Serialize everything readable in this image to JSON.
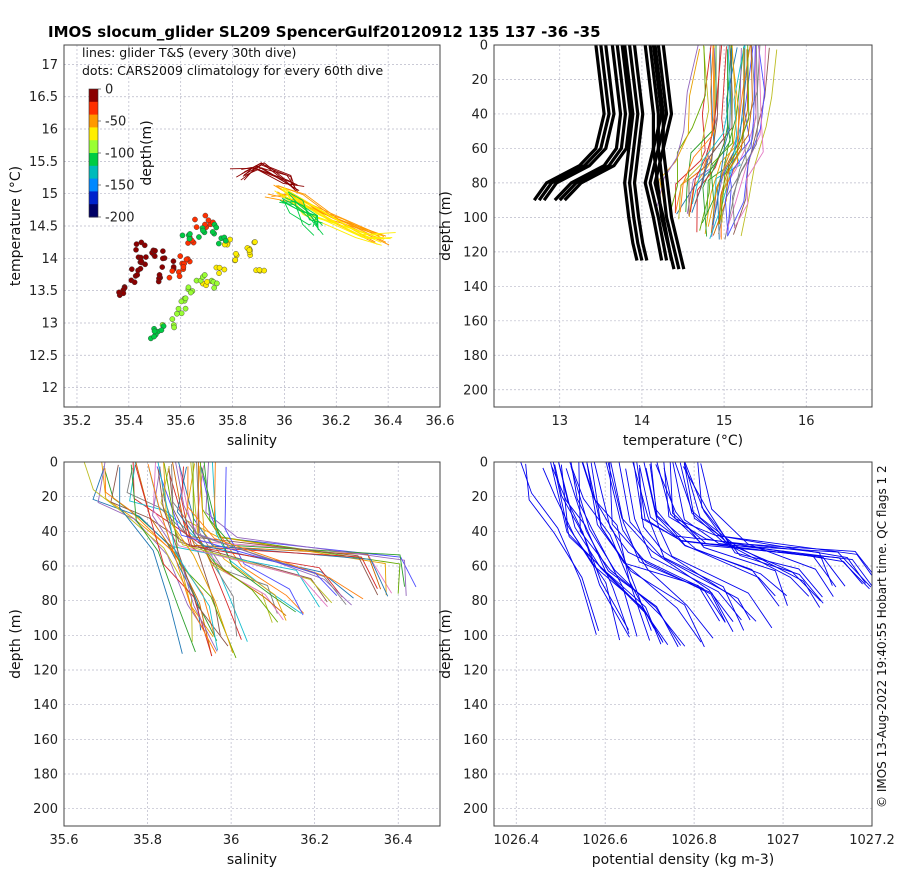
{
  "title": "IMOS slocum_glider SL209 SpencerGulf20120912 135  137  -36  -35",
  "credit": "© IMOS 13-Aug-2022 19:40:55 Hobart time. QC flags 1  2",
  "annotations": {
    "line1": "lines: glider T&S (every 30th dive)",
    "line2": "dots: CARS2009 climatology for every 60th dive"
  },
  "colorbar": {
    "label": "depth(m)",
    "ticks": [
      "0",
      "-50",
      "-100",
      "-150",
      "-200"
    ],
    "values": [
      0,
      -50,
      -100,
      -150,
      -200
    ],
    "colors": [
      "#8b0000",
      "#ff3000",
      "#ff9900",
      "#ffee00",
      "#99ff33",
      "#00cc44",
      "#00bbbb",
      "#0088ff",
      "#0022cc",
      "#000066"
    ]
  },
  "colors": {
    "glider_line": "#000000",
    "density_line": "#0000ee",
    "dot_edge": "#333333"
  },
  "chart_data": [
    {
      "type": "scatter",
      "panel": "ts",
      "xlabel": "salinity",
      "ylabel": "temperature (°C)",
      "xlim": [
        35.15,
        36.6
      ],
      "ylim": [
        11.7,
        17.3
      ],
      "xticks": [
        35.2,
        35.4,
        35.6,
        35.8,
        36,
        36.2,
        36.4,
        36.6
      ],
      "xtick_labels": [
        "35.2",
        "35.4",
        "35.6",
        "35.8",
        "36",
        "36.2",
        "36.4",
        "36.6"
      ],
      "yticks": [
        12,
        12.5,
        13,
        13.5,
        14,
        14.5,
        15,
        15.5,
        16,
        16.5,
        17
      ],
      "ytick_labels": [
        "12",
        "12.5",
        "13",
        "13.5",
        "14",
        "14.5",
        "15",
        "15.5",
        "16",
        "16.5",
        "17"
      ],
      "dot_clusters": [
        {
          "depth": 0,
          "points": [
            [
              35.4,
              13.6
            ],
            [
              35.42,
              13.8
            ],
            [
              35.44,
              13.9
            ],
            [
              35.46,
              14.0
            ],
            [
              35.48,
              14.1
            ],
            [
              35.5,
              13.7
            ],
            [
              35.52,
              14.05
            ],
            [
              35.55,
              13.9
            ],
            [
              35.38,
              13.5
            ],
            [
              35.45,
              14.2
            ]
          ]
        },
        {
          "depth": -30,
          "points": [
            [
              35.6,
              13.85
            ],
            [
              35.62,
              14.0
            ],
            [
              35.65,
              14.3
            ],
            [
              35.68,
              14.55
            ],
            [
              35.7,
              14.6
            ],
            [
              35.58,
              13.75
            ]
          ]
        },
        {
          "depth": -60,
          "points": [
            [
              35.75,
              13.8
            ],
            [
              35.8,
              14.0
            ],
            [
              35.85,
              14.1
            ],
            [
              35.88,
              14.2
            ],
            [
              35.7,
              13.6
            ],
            [
              35.78,
              14.25
            ],
            [
              35.9,
              13.8
            ]
          ]
        },
        {
          "depth": -90,
          "points": [
            [
              35.6,
              13.2
            ],
            [
              35.62,
              13.4
            ],
            [
              35.65,
              13.5
            ],
            [
              35.68,
              13.7
            ],
            [
              35.72,
              13.6
            ],
            [
              35.55,
              13.0
            ]
          ]
        },
        {
          "depth": -120,
          "points": [
            [
              35.62,
              14.35
            ],
            [
              35.68,
              14.4
            ],
            [
              35.72,
              14.45
            ],
            [
              35.75,
              14.3
            ],
            [
              35.5,
              12.8
            ],
            [
              35.52,
              12.9
            ]
          ]
        }
      ],
      "line_groups": [
        {
          "depth": 0,
          "points": [
            [
              35.82,
              15.3
            ],
            [
              35.9,
              15.45
            ],
            [
              36.0,
              15.2
            ],
            [
              36.05,
              15.1
            ]
          ]
        },
        {
          "depth": -40,
          "points": [
            [
              35.95,
              15.05
            ],
            [
              36.05,
              14.9
            ],
            [
              36.2,
              14.6
            ],
            [
              36.38,
              14.3
            ]
          ]
        },
        {
          "depth": -70,
          "points": [
            [
              35.98,
              15.0
            ],
            [
              36.1,
              14.75
            ],
            [
              36.3,
              14.4
            ],
            [
              36.4,
              14.3
            ]
          ]
        },
        {
          "depth": -100,
          "points": [
            [
              36.0,
              14.95
            ],
            [
              36.05,
              14.8
            ],
            [
              36.1,
              14.6
            ],
            [
              36.12,
              14.45
            ]
          ]
        }
      ]
    },
    {
      "type": "line",
      "panel": "temp-depth",
      "xlabel": "temperature (°C)",
      "ylabel": "depth (m)",
      "xlim": [
        12.2,
        16.8
      ],
      "ylim": [
        210,
        0
      ],
      "xticks": [
        13,
        14,
        15,
        16
      ],
      "xtick_labels": [
        "13",
        "14",
        "15",
        "16"
      ],
      "yticks": [
        0,
        20,
        40,
        60,
        80,
        100,
        120,
        140,
        160,
        180,
        200
      ],
      "ytick_labels": [
        "0",
        "20",
        "40",
        "60",
        "80",
        "100",
        "120",
        "140",
        "160",
        "180",
        "200"
      ],
      "climatology_profiles": [
        {
          "x": [
            13.5,
            13.55,
            13.6,
            13.5,
            13.3,
            12.9,
            12.75
          ],
          "depth": [
            0,
            20,
            40,
            60,
            70,
            80,
            90
          ]
        },
        {
          "x": [
            13.7,
            13.75,
            13.8,
            13.75,
            13.6,
            13.2,
            13.0
          ],
          "depth": [
            0,
            20,
            40,
            60,
            70,
            80,
            90
          ]
        },
        {
          "x": [
            13.85,
            13.9,
            13.95,
            13.9,
            13.85,
            13.9,
            13.95,
            14.0
          ],
          "depth": [
            0,
            20,
            40,
            60,
            80,
            100,
            115,
            125
          ]
        },
        {
          "x": [
            14.1,
            14.15,
            14.2,
            14.2,
            14.25,
            14.3,
            14.4,
            14.45
          ],
          "depth": [
            0,
            20,
            40,
            60,
            80,
            100,
            120,
            130
          ]
        },
        {
          "x": [
            14.2,
            14.25,
            14.3,
            14.2,
            14.1,
            14.2,
            14.3
          ],
          "depth": [
            0,
            20,
            40,
            60,
            80,
            100,
            125
          ]
        }
      ],
      "glider_profiles": [
        {
          "x": [
            15.0,
            15.0,
            14.95,
            14.9,
            14.7,
            14.6
          ],
          "depth": [
            0,
            40,
            60,
            70,
            80,
            100
          ]
        },
        {
          "x": [
            15.2,
            15.2,
            15.15,
            15.0,
            14.9,
            14.85
          ],
          "depth": [
            0,
            40,
            55,
            70,
            85,
            110
          ]
        },
        {
          "x": [
            15.4,
            15.35,
            15.3,
            15.2,
            15.1,
            15.0
          ],
          "depth": [
            0,
            30,
            50,
            70,
            90,
            110
          ]
        },
        {
          "x": [
            14.9,
            14.85,
            14.8,
            14.6,
            14.5,
            14.45
          ],
          "depth": [
            0,
            30,
            50,
            65,
            80,
            95
          ]
        },
        {
          "x": [
            15.3,
            15.3,
            15.25,
            15.1,
            15.05,
            15.0
          ],
          "depth": [
            0,
            45,
            60,
            75,
            90,
            105
          ]
        }
      ]
    },
    {
      "type": "line",
      "panel": "sal-depth",
      "xlabel": "salinity",
      "ylabel": "depth (m)",
      "xlim": [
        35.6,
        36.5
      ],
      "ylim": [
        210,
        0
      ],
      "xticks": [
        35.6,
        35.8,
        36,
        36.2,
        36.4
      ],
      "xtick_labels": [
        "35.6",
        "35.8",
        "36",
        "36.2",
        "36.4"
      ],
      "yticks": [
        0,
        20,
        40,
        60,
        80,
        100,
        120,
        140,
        160,
        180,
        200
      ],
      "ytick_labels": [
        "0",
        "20",
        "40",
        "60",
        "80",
        "100",
        "120",
        "140",
        "160",
        "180",
        "200"
      ],
      "profiles": [
        {
          "x": [
            35.72,
            35.72,
            35.8,
            35.9,
            35.95,
            35.98
          ],
          "depth": [
            0,
            20,
            30,
            50,
            80,
            100
          ]
        },
        {
          "x": [
            35.9,
            35.9,
            35.95,
            36.35,
            36.38
          ],
          "depth": [
            0,
            30,
            45,
            55,
            75
          ]
        },
        {
          "x": [
            35.95,
            35.96,
            36.0,
            36.1,
            36.15
          ],
          "depth": [
            0,
            40,
            60,
            75,
            90
          ]
        },
        {
          "x": [
            35.85,
            35.86,
            35.9,
            36.2,
            36.25
          ],
          "depth": [
            0,
            25,
            45,
            65,
            80
          ]
        },
        {
          "x": [
            35.78,
            35.8,
            35.85,
            35.9,
            35.95
          ],
          "depth": [
            0,
            30,
            55,
            80,
            110
          ]
        }
      ]
    },
    {
      "type": "line",
      "panel": "density-depth",
      "xlabel": "potential density (kg m-3)",
      "ylabel": "depth (m)",
      "xlim": [
        1026.35,
        1027.2
      ],
      "ylim": [
        210,
        0
      ],
      "xticks": [
        1026.4,
        1026.6,
        1026.8,
        1027,
        1027.2
      ],
      "xtick_labels": [
        "1026.4",
        "1026.6",
        "1026.8",
        "1027",
        "1027.2"
      ],
      "yticks": [
        0,
        20,
        40,
        60,
        80,
        100,
        120,
        140,
        160,
        180,
        200
      ],
      "ytick_labels": [
        "0",
        "20",
        "40",
        "60",
        "80",
        "100",
        "120",
        "140",
        "160",
        "180",
        "200"
      ],
      "profiles": [
        {
          "x": [
            1026.48,
            1026.5,
            1026.55,
            1026.6,
            1026.65
          ],
          "depth": [
            0,
            20,
            40,
            70,
            100
          ]
        },
        {
          "x": [
            1026.7,
            1026.72,
            1026.8,
            1027.1,
            1027.15
          ],
          "depth": [
            0,
            30,
            45,
            55,
            70
          ]
        },
        {
          "x": [
            1026.62,
            1026.65,
            1026.7,
            1026.85,
            1026.9
          ],
          "depth": [
            0,
            35,
            55,
            75,
            95
          ]
        },
        {
          "x": [
            1026.75,
            1026.78,
            1026.85,
            1027.0,
            1027.05
          ],
          "depth": [
            0,
            30,
            50,
            65,
            80
          ]
        },
        {
          "x": [
            1026.55,
            1026.58,
            1026.65,
            1026.75,
            1026.8
          ],
          "depth": [
            0,
            40,
            60,
            85,
            105
          ]
        }
      ]
    }
  ]
}
